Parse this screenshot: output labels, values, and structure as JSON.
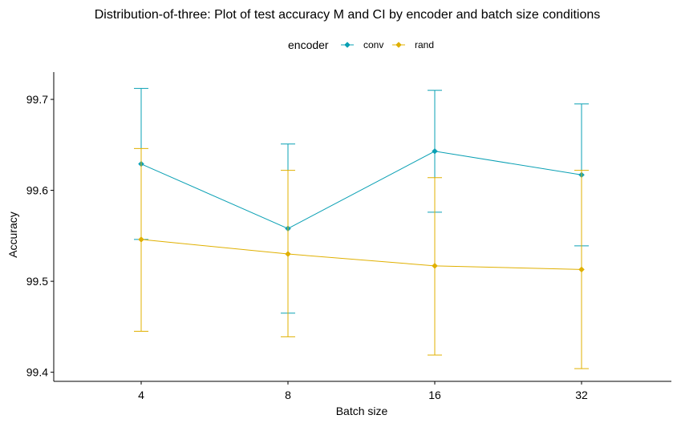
{
  "chart_data": {
    "type": "line",
    "title": "Distribution-of-three: Plot of test accuracy M and CI by encoder and batch size conditions",
    "xlabel": "Batch size",
    "ylabel": "Accuracy",
    "categories": [
      "4",
      "8",
      "16",
      "32"
    ],
    "ylim": [
      99.39,
      99.73
    ],
    "yticks": [
      99.4,
      99.5,
      99.6,
      99.7
    ],
    "grid": false,
    "legend": {
      "title": "encoder",
      "position": "top"
    },
    "series": [
      {
        "name": "conv",
        "color": "#0aa0b4",
        "values": [
          99.629,
          99.558,
          99.643,
          99.617
        ],
        "ci_low": [
          99.546,
          99.465,
          99.576,
          99.539
        ],
        "ci_high": [
          99.712,
          99.651,
          99.71,
          99.695
        ]
      },
      {
        "name": "rand",
        "color": "#e0b000",
        "values": [
          99.546,
          99.53,
          99.517,
          99.513
        ],
        "ci_low": [
          99.445,
          99.439,
          99.419,
          99.404
        ],
        "ci_high": [
          99.646,
          99.622,
          99.614,
          99.622
        ]
      }
    ]
  }
}
